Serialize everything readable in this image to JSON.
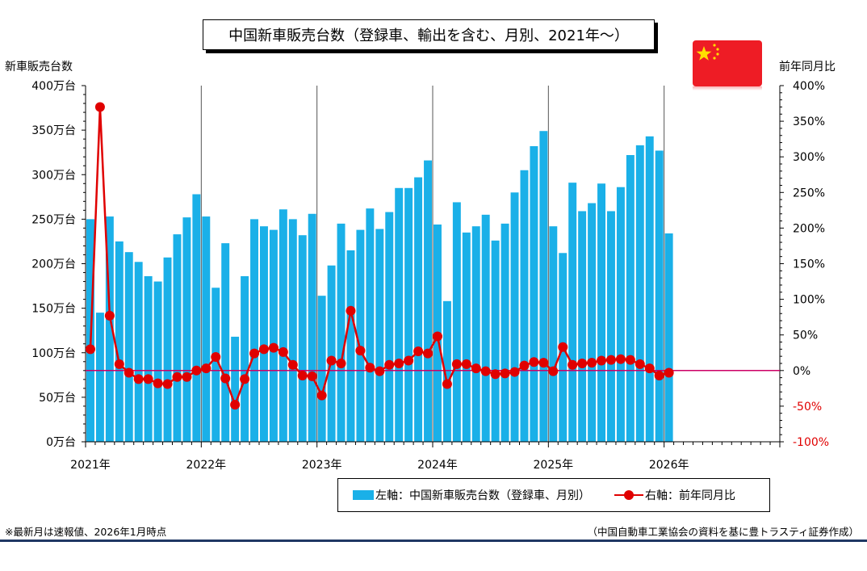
{
  "title": "中国新車販売台数（登録車、輸出を含む、月別、2021年～）",
  "left_axis_title": "新車販売台数",
  "right_axis_title": "前年同月比",
  "footnote_left": "※最新月は速報値、2026年1月時点",
  "footnote_right": "（中国自動車工業協会の資料を基に豊トラスティ証券作成）",
  "legend": {
    "bar_label": "左軸：中国新車販売台数（登録車、月別）",
    "line_label": "右軸：前年同月比"
  },
  "colors": {
    "bar": "#1ab0e8",
    "line": "#e00000",
    "zero_line": "#cc0066",
    "flag_red": "#ee1c25",
    "flag_star": "#ffde00"
  },
  "chart_data": {
    "type": "bar",
    "title": "中国新車販売台数（登録車、輸出を含む、月別、2021年～）",
    "x_tick_labels": [
      "2021年",
      "2022年",
      "2023年",
      "2024年",
      "2025年",
      "2026年"
    ],
    "left_axis": {
      "label": "新車販売台数",
      "ylim": [
        0,
        400
      ],
      "ticks": [
        "0万台",
        "50万台",
        "100万台",
        "150万台",
        "200万台",
        "250万台",
        "300万台",
        "350万台",
        "400万台"
      ]
    },
    "right_axis": {
      "label": "前年同月比",
      "ylim": [
        -100,
        400
      ],
      "ticks": [
        "-100%",
        "-50%",
        "0%",
        "50%",
        "100%",
        "150%",
        "200%",
        "250%",
        "300%",
        "350%",
        "400%"
      ]
    },
    "series": [
      {
        "name": "左軸：中国新車販売台数（登録車、月別）",
        "type": "bar",
        "axis": "left",
        "unit": "万台",
        "values": [
          250,
          145,
          253,
          225,
          213,
          202,
          186,
          180,
          207,
          233,
          252,
          278,
          253,
          173,
          223,
          118,
          186,
          250,
          242,
          238,
          261,
          250,
          232,
          256,
          164,
          198,
          245,
          215,
          238,
          262,
          239,
          258,
          285,
          285,
          297,
          316,
          244,
          158,
          269,
          235,
          242,
          255,
          226,
          245,
          280,
          305,
          332,
          349,
          242,
          212,
          291,
          259,
          268,
          290,
          259,
          286,
          322,
          333,
          343,
          327,
          234
        ]
      },
      {
        "name": "右軸：前年同月比",
        "type": "line",
        "axis": "right",
        "unit": "%",
        "values": [
          30,
          370,
          77,
          9,
          -3,
          -12,
          -12,
          -18,
          -19,
          -9,
          -9,
          0,
          3,
          19,
          -11,
          -48,
          -12,
          24,
          30,
          32,
          26,
          8,
          -7,
          -8,
          -35,
          14,
          10,
          84,
          28,
          4,
          -1,
          8,
          10,
          14,
          27,
          24,
          48,
          -19,
          9,
          9,
          3,
          -1,
          -5,
          -4,
          -2,
          7,
          12,
          11,
          -1,
          33,
          8,
          10,
          11,
          14,
          15,
          16,
          15,
          9,
          3,
          -7,
          -3
        ]
      }
    ]
  }
}
